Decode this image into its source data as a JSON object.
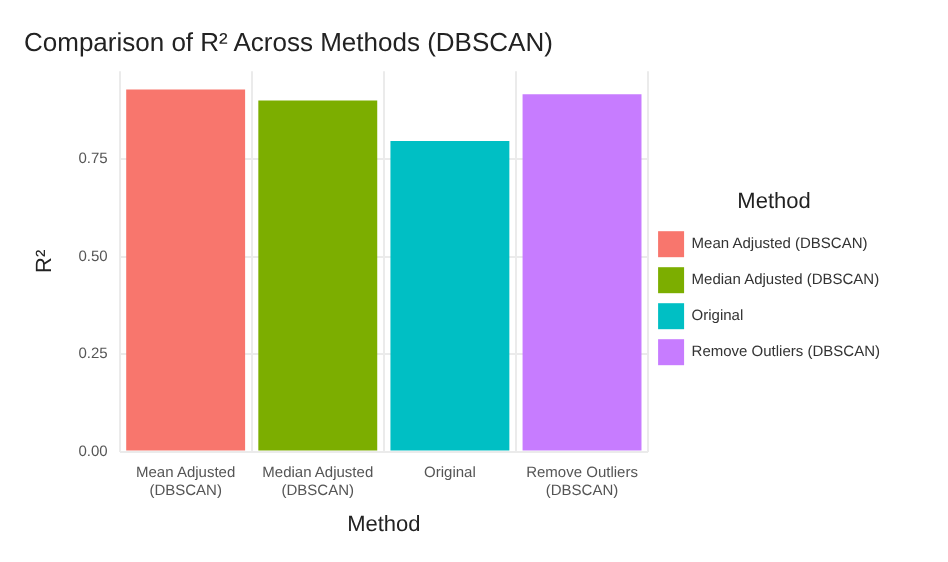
{
  "chart_data": {
    "type": "bar",
    "title": "Comparison of R² Across Methods (DBSCAN)",
    "xlabel": "Method",
    "ylabel": "R²",
    "legend_title": "Method",
    "categories": [
      "Mean Adjusted (DBSCAN)",
      "Median Adjusted (DBSCAN)",
      "Original",
      "Remove Outliers (DBSCAN)"
    ],
    "series": [
      {
        "name": "Mean Adjusted (DBSCAN)",
        "color": "#f8766d",
        "values": [
          0.928,
          null,
          null,
          null
        ]
      },
      {
        "name": "Median Adjusted (DBSCAN)",
        "color": "#7cae00",
        "values": [
          null,
          0.9,
          null,
          null
        ]
      },
      {
        "name": "Original",
        "color": "#00bfc4",
        "values": [
          null,
          null,
          0.796,
          null
        ]
      },
      {
        "name": "Remove Outliers (DBSCAN)",
        "color": "#c77cff",
        "values": [
          null,
          null,
          null,
          0.916
        ]
      }
    ],
    "ylim": [
      0,
      0.975
    ],
    "yticks": [
      {
        "value": 0,
        "label": "0.00"
      },
      {
        "value": 0.25,
        "label": "0.25"
      },
      {
        "value": 0.5,
        "label": "0.50"
      },
      {
        "value": 0.75,
        "label": "0.75"
      }
    ],
    "grid": true,
    "legend": "right"
  }
}
